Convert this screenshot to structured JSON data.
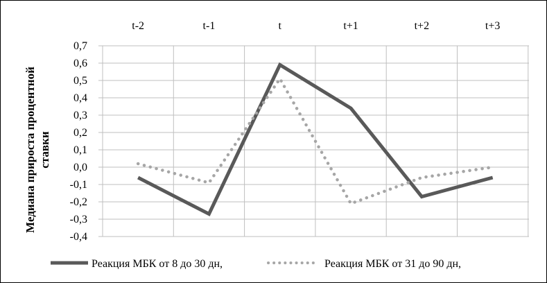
{
  "chart_data": {
    "type": "line",
    "categories": [
      "t-2",
      "t-1",
      "t",
      "t+1",
      "t+2",
      "t+3"
    ],
    "ylabel_lines": [
      "Медиана прироста процентной",
      "ставки"
    ],
    "ylim": [
      -0.4,
      0.7
    ],
    "ytick_step": 0.1,
    "ytick_labels": [
      "0,7",
      "0,6",
      "0,5",
      "0,4",
      "0,3",
      "0,2",
      "0,1",
      "0,0",
      "-0,1",
      "-0,2",
      "-0,3",
      "-0,4"
    ],
    "grid": true,
    "legend_position": "bottom",
    "series": [
      {
        "name": "Реакция МБК от 8 до 30 дн,",
        "style": "solid",
        "color": "#595959",
        "values": [
          -0.06,
          -0.27,
          0.59,
          0.34,
          -0.17,
          -0.06
        ]
      },
      {
        "name": "Реакция МБК от 31 до 90 дн,",
        "style": "dotted",
        "color": "#a6a6a6",
        "values": [
          0.02,
          -0.09,
          0.51,
          -0.21,
          -0.06,
          0.0
        ]
      }
    ]
  }
}
